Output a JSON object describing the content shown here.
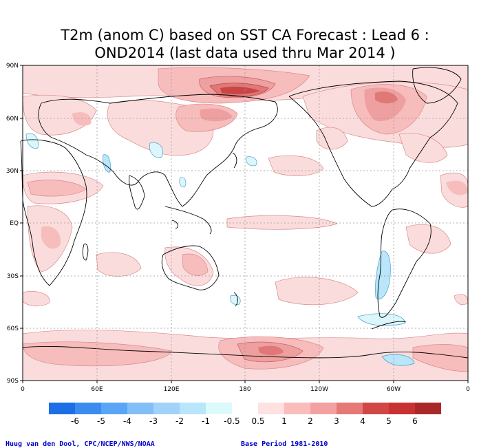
{
  "title_line1": "T2m (anom C) based on SST CA Forecast : Lead 6 :",
  "title_line2": "OND2014 (last data used thru Mar 2014 )",
  "lat_labels": [
    "90N",
    "60N",
    "30N",
    "EQ",
    "30S",
    "60S",
    "90S"
  ],
  "lon_labels": [
    "0",
    "60E",
    "120E",
    "180",
    "120W",
    "60W",
    "0"
  ],
  "legend": {
    "labels": [
      "-6",
      "-5",
      "-4",
      "-3",
      "-2",
      "-1",
      "-0.5",
      "0.5",
      "1",
      "2",
      "3",
      "4",
      "5",
      "6"
    ],
    "colors": [
      "#1e6ee6",
      "#3c8cf0",
      "#5aa5f5",
      "#82bef8",
      "#a0d2fa",
      "#b9e6fa",
      "#dcfafc",
      "#ffffff",
      "#ffe1e1",
      "#fbbcbc",
      "#f5a0a0",
      "#e67878",
      "#d24646",
      "#c83232",
      "#aa2828"
    ]
  },
  "credit_left": "Huug van den Dool, CPC/NCEP/NWS/NOAA",
  "credit_right": "Base Period 1981-2010",
  "colors": {
    "light_pink": "#fbdcdc",
    "pink": "#f7bcbc",
    "medium_red": "#ee9f9f",
    "red": "#e07878",
    "dark_red": "#cc4545",
    "light_blue": "#b9e6fa",
    "pale_blue": "#dcf6fc",
    "coast": "#000000"
  }
}
